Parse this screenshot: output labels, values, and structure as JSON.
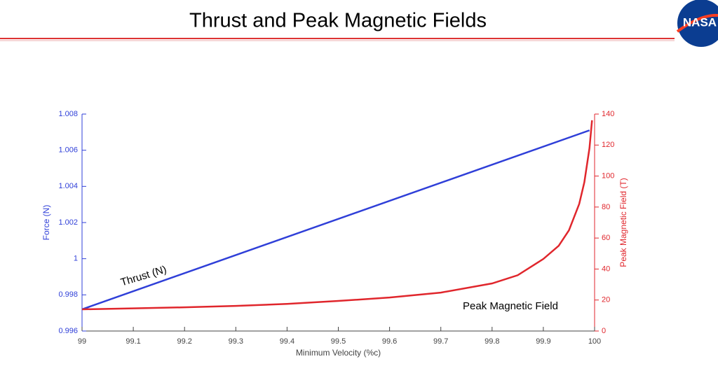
{
  "logo": "NASA",
  "chart_data": {
    "type": "line",
    "title": "Thrust and Peak Magnetic Fields",
    "xlabel": "Minimum Velocity (%c)",
    "ylabel": "Force (N)",
    "y2label": "Peak Magnetic Field (T)",
    "xlim": [
      99,
      100
    ],
    "xticks": [
      99,
      99.1,
      99.2,
      99.3,
      99.4,
      99.5,
      99.6,
      99.7,
      99.8,
      99.9,
      100
    ],
    "ylim": [
      0.996,
      1.008
    ],
    "yticks": [
      0.996,
      0.998,
      1,
      1.002,
      1.004,
      1.006,
      1.008
    ],
    "y2lim": [
      0,
      140
    ],
    "y2ticks": [
      0,
      20,
      40,
      60,
      80,
      100,
      120,
      140
    ],
    "ycolor": "#2f3fd8",
    "y2color": "#e0262c",
    "grid": false,
    "series": [
      {
        "name": "Thrust (N)",
        "color": "#2f3fd8",
        "axis": "y",
        "x": [
          99,
          99.99
        ],
        "values": [
          0.9972,
          1.0071
        ]
      },
      {
        "name": "Peak Magnetic Field",
        "color": "#e0262c",
        "axis": "y2",
        "x": [
          99,
          99.1,
          99.2,
          99.3,
          99.4,
          99.5,
          99.6,
          99.7,
          99.8,
          99.85,
          99.9,
          99.93,
          99.95,
          99.97,
          99.98,
          99.99,
          99.995
        ],
        "values": [
          14,
          14.6,
          15.3,
          16.2,
          17.5,
          19.4,
          21.6,
          24.8,
          30.7,
          36,
          46.5,
          55,
          65,
          82,
          96,
          118,
          136
        ]
      }
    ]
  }
}
